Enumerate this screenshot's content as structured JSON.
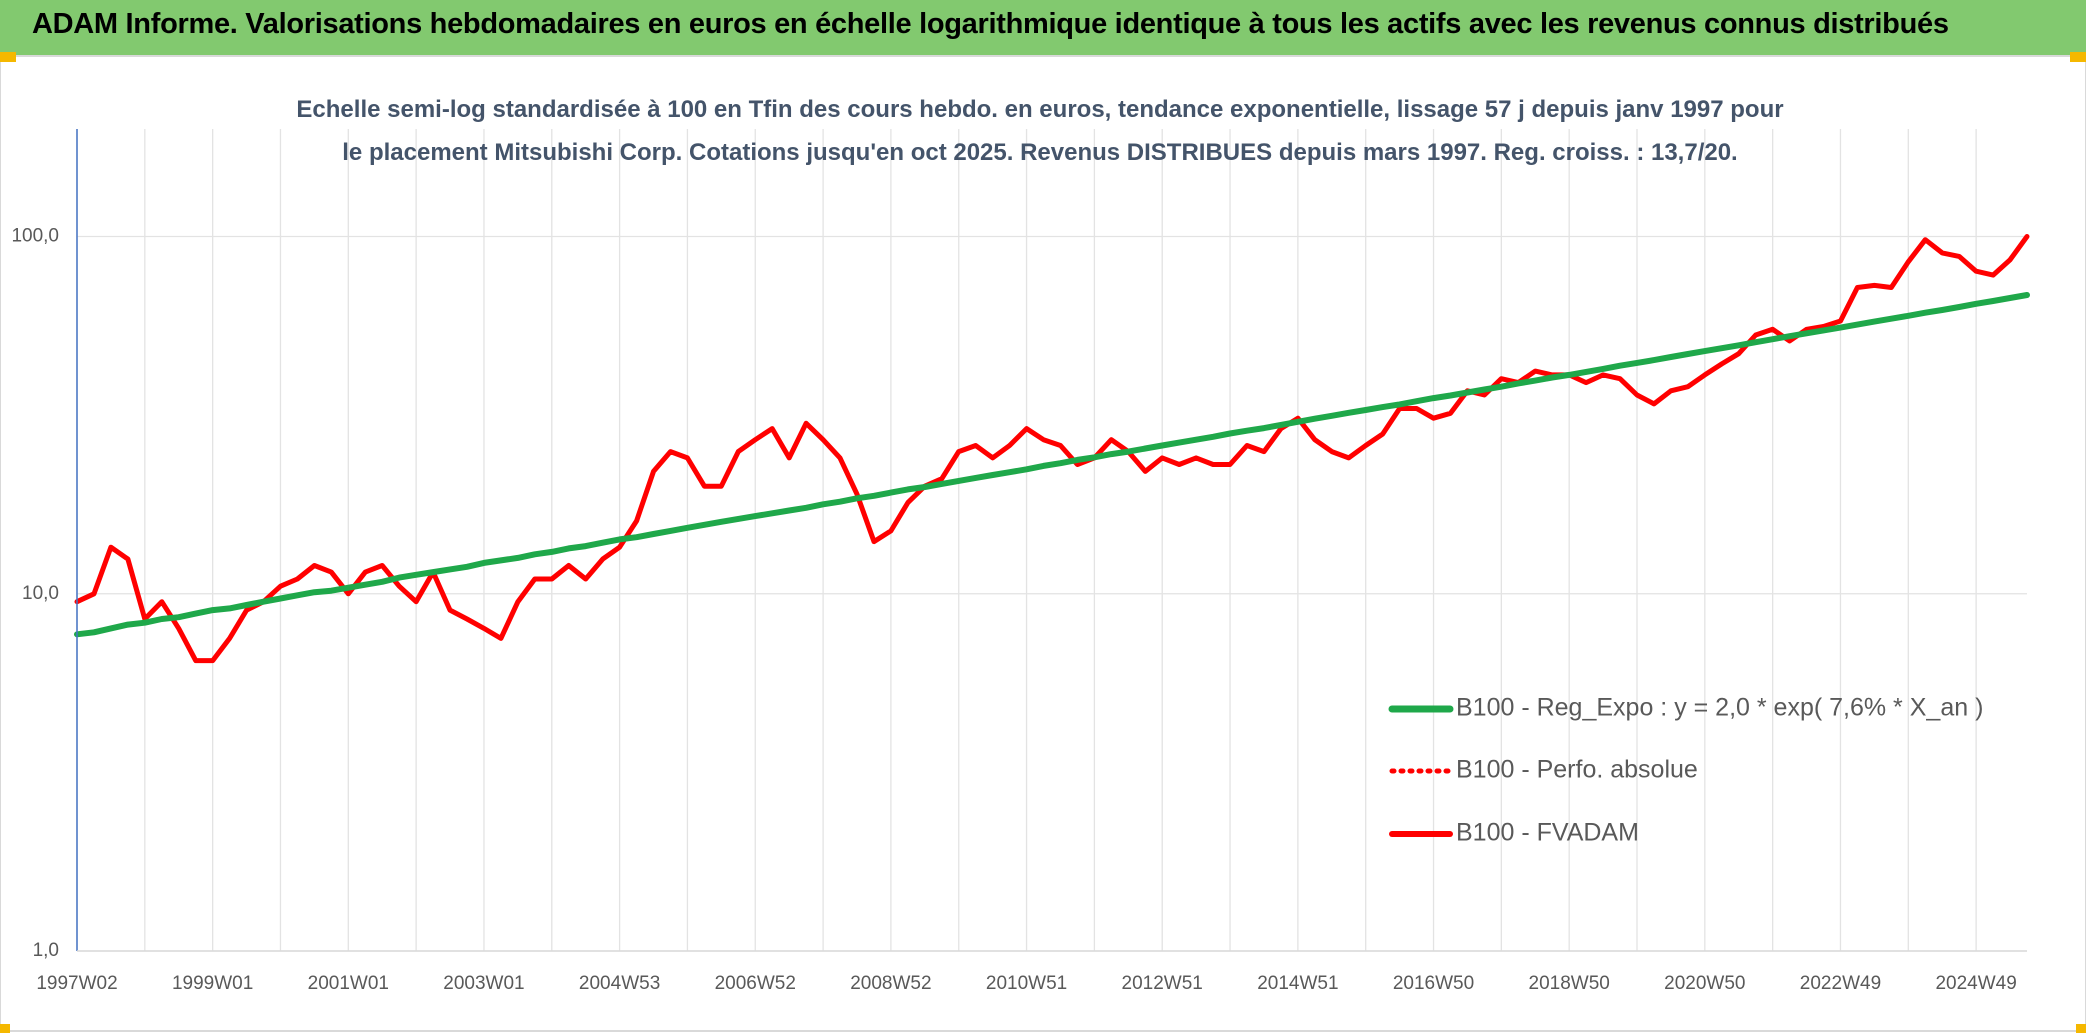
{
  "chart_data": {
    "type": "line",
    "title": "ADAM Informe. Valorisations hebdomadaires en euros en échelle logarithmique identique à tous les actifs avec les revenus connus distribués",
    "subtitle": "Echelle semi-log standardisée à 100 en Tfin des cours hebdo. en euros, tendance exponentielle, lissage 57 j depuis janv 1997 pour le placement Mitsubishi Corp. Cotations jusqu'en oct 2025. Revenus DISTRIBUES depuis mars 1997. Reg. croiss. : 13,7/20.",
    "log_scale": true,
    "grid": true,
    "legend": "lower right",
    "ylim": [
      1,
      200
    ],
    "yticks": [
      {
        "value": 1,
        "label": "1,0"
      },
      {
        "value": 10,
        "label": "10,0"
      },
      {
        "value": 100,
        "label": "100,0"
      }
    ],
    "categories": [
      "1997W02",
      null,
      null,
      null,
      null,
      null,
      null,
      null,
      "1999W01",
      null,
      null,
      null,
      null,
      null,
      null,
      null,
      "2001W01",
      null,
      null,
      null,
      null,
      null,
      null,
      null,
      "2003W01",
      null,
      null,
      null,
      null,
      null,
      null,
      null,
      "2004W53",
      null,
      null,
      null,
      null,
      null,
      null,
      null,
      "2006W52",
      null,
      null,
      null,
      null,
      null,
      null,
      null,
      "2008W52",
      null,
      null,
      null,
      null,
      null,
      null,
      null,
      "2010W51",
      null,
      null,
      null,
      null,
      null,
      null,
      null,
      "2012W51",
      null,
      null,
      null,
      null,
      null,
      null,
      null,
      "2014W51",
      null,
      null,
      null,
      null,
      null,
      null,
      null,
      "2016W50",
      null,
      null,
      null,
      null,
      null,
      null,
      null,
      "2018W50",
      null,
      null,
      null,
      null,
      null,
      null,
      null,
      "2020W50",
      null,
      null,
      null,
      null,
      null,
      null,
      null,
      "2022W49",
      null,
      null,
      null,
      null,
      null,
      null,
      null,
      "2024W49",
      null,
      null,
      null
    ],
    "series": [
      {
        "name": "B100 - Reg_Expo : y = 2,0 * exp( 7,6% *  X_an )",
        "color": "#1fa84a",
        "style": "solid",
        "width": 6,
        "values": [
          7.7,
          7.8,
          8.0,
          8.2,
          8.3,
          8.5,
          8.6,
          8.8,
          9.0,
          9.1,
          9.3,
          9.5,
          9.7,
          9.9,
          10.1,
          10.2,
          10.4,
          10.6,
          10.8,
          11.1,
          11.3,
          11.5,
          11.7,
          11.9,
          12.2,
          12.4,
          12.6,
          12.9,
          13.1,
          13.4,
          13.6,
          13.9,
          14.2,
          14.4,
          14.7,
          15.0,
          15.3,
          15.6,
          15.9,
          16.2,
          16.5,
          16.8,
          17.1,
          17.4,
          17.8,
          18.1,
          18.5,
          18.8,
          19.2,
          19.6,
          19.9,
          20.3,
          20.7,
          21.1,
          21.5,
          21.9,
          22.3,
          22.8,
          23.2,
          23.7,
          24.1,
          24.6,
          25.0,
          25.5,
          26.0,
          26.5,
          27.0,
          27.5,
          28.1,
          28.6,
          29.1,
          29.7,
          30.3,
          30.9,
          31.5,
          32.1,
          32.7,
          33.3,
          33.9,
          34.6,
          35.3,
          35.9,
          36.6,
          37.3,
          38.0,
          38.8,
          39.5,
          40.3,
          41.0,
          41.8,
          42.6,
          43.5,
          44.3,
          45.1,
          46.0,
          46.9,
          47.8,
          48.7,
          49.6,
          50.6,
          51.6,
          52.6,
          53.6,
          54.6,
          55.6,
          56.7,
          57.8,
          58.9,
          60.0,
          61.2,
          62.3,
          63.5,
          64.8,
          66.0,
          67.3,
          68.6
        ]
      },
      {
        "name": "B100 - Perfo. absolue",
        "color": "#ff0000",
        "style": "dotted",
        "width": 4,
        "values": [
          9.5,
          10,
          13.5,
          12.5,
          8.5,
          9.5,
          8,
          6.5,
          6.5,
          7.5,
          9,
          9.5,
          10.5,
          11,
          12,
          11.5,
          10,
          11.5,
          12,
          10.5,
          9.5,
          11.5,
          9,
          8.5,
          8,
          7.5,
          9.5,
          11,
          11,
          12,
          11,
          12.5,
          13.5,
          16,
          22,
          25,
          24,
          20,
          20,
          25,
          27,
          29,
          24,
          30,
          27,
          24,
          19,
          14,
          15,
          18,
          20,
          21,
          25,
          26,
          24,
          26,
          29,
          27,
          26,
          23,
          24,
          27,
          25,
          22,
          24,
          23,
          24,
          23,
          23,
          26,
          25,
          29,
          31,
          27,
          25,
          24,
          26,
          28,
          33,
          33,
          31,
          32,
          37,
          36,
          40,
          39,
          42,
          41,
          41,
          39,
          41,
          40,
          36,
          34,
          37,
          38,
          41,
          44,
          47,
          53,
          55,
          51,
          55,
          56,
          58,
          72,
          73,
          72,
          85,
          98,
          90,
          88,
          80,
          78,
          86,
          100
        ]
      },
      {
        "name": "B100 - FVADAM",
        "color": "#ff0000",
        "style": "solid",
        "width": 5,
        "values": [
          9.5,
          10,
          13.5,
          12.5,
          8.5,
          9.5,
          8,
          6.5,
          6.5,
          7.5,
          9,
          9.5,
          10.5,
          11,
          12,
          11.5,
          10,
          11.5,
          12,
          10.5,
          9.5,
          11.5,
          9,
          8.5,
          8,
          7.5,
          9.5,
          11,
          11,
          12,
          11,
          12.5,
          13.5,
          16,
          22,
          25,
          24,
          20,
          20,
          25,
          27,
          29,
          24,
          30,
          27,
          24,
          19,
          14,
          15,
          18,
          20,
          21,
          25,
          26,
          24,
          26,
          29,
          27,
          26,
          23,
          24,
          27,
          25,
          22,
          24,
          23,
          24,
          23,
          23,
          26,
          25,
          29,
          31,
          27,
          25,
          24,
          26,
          28,
          33,
          33,
          31,
          32,
          37,
          36,
          40,
          39,
          42,
          41,
          41,
          39,
          41,
          40,
          36,
          34,
          37,
          38,
          41,
          44,
          47,
          53,
          55,
          51,
          55,
          56,
          58,
          72,
          73,
          72,
          85,
          98,
          90,
          88,
          80,
          78,
          86,
          100
        ]
      }
    ]
  }
}
